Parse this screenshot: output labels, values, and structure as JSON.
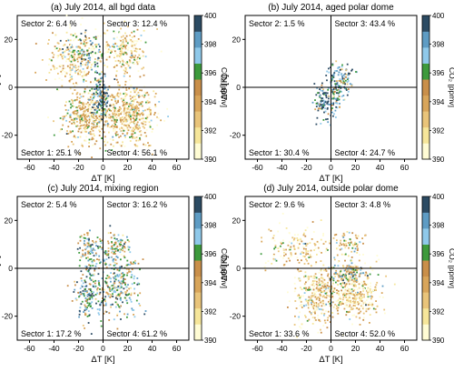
{
  "colorbar": {
    "label": "CO₂ [ppmv]",
    "ticks": [
      "390",
      "392",
      "394",
      "396",
      "398",
      "400"
    ],
    "colors": [
      "#fffcd4",
      "#f6e69a",
      "#e9c47a",
      "#d8a55a",
      "#c98f4a",
      "#3d9a3c",
      "#8fc9ea",
      "#5e9cc4",
      "#2c4b63"
    ]
  },
  "chart_data": [
    {
      "type": "scatter",
      "title": "(a) July 2014, all bgd data",
      "xlabel": "ΔT [K]",
      "ylabel": "ΔΘ [K]",
      "xlim": [
        -70,
        70
      ],
      "ylim": [
        -30,
        30
      ],
      "xticks": [
        "-60",
        "-40",
        "-20",
        "0",
        "20",
        "40",
        "60"
      ],
      "yticks": [
        "-20",
        "0",
        "20"
      ],
      "sectors": {
        "s1": "Sector 1: 25.1 %",
        "s2": "Sector 2: 6.4 %",
        "s3": "Sector 3: 12.4 %",
        "s4": "Sector 4: 56.1 %"
      },
      "clusters": [
        {
          "cx": -22,
          "cy": 12,
          "sx": 12,
          "sy": 6,
          "n": 260,
          "co2": 392.0
        },
        {
          "cx": -15,
          "cy": 14,
          "sx": 8,
          "sy": 4,
          "n": 80,
          "co2": 397.0
        },
        {
          "cx": 18,
          "cy": 14,
          "sx": 10,
          "sy": 5,
          "n": 220,
          "co2": 393.0
        },
        {
          "cx": -14,
          "cy": -12,
          "sx": 9,
          "sy": 6,
          "n": 360,
          "co2": 393.5
        },
        {
          "cx": 20,
          "cy": -12,
          "sx": 11,
          "sy": 6,
          "n": 520,
          "co2": 393.0
        },
        {
          "cx": -2,
          "cy": -4,
          "sx": 3,
          "sy": 5,
          "n": 140,
          "co2": 398.5
        }
      ]
    },
    {
      "type": "scatter",
      "title": "(b) July 2014, aged polar dome",
      "xlabel": "ΔT [K]",
      "ylabel": "ΔΘ [K]",
      "xlim": [
        -70,
        70
      ],
      "ylim": [
        -30,
        30
      ],
      "xticks": [
        "-60",
        "-40",
        "-20",
        "0",
        "20",
        "40",
        "60"
      ],
      "yticks": [
        "-20",
        "0",
        "20"
      ],
      "sectors": {
        "s1": "Sector 1: 30.4 %",
        "s2": "Sector 2: 1.5 %",
        "s3": "Sector 3: 43.4 %",
        "s4": "Sector 4: 24.7 %"
      },
      "clusters": [
        {
          "cx": 8,
          "cy": 4,
          "sx": 5,
          "sy": 4,
          "n": 110,
          "co2": 397.5
        },
        {
          "cx": -6,
          "cy": -6,
          "sx": 4,
          "sy": 4,
          "n": 100,
          "co2": 398.5
        },
        {
          "cx": 4,
          "cy": -5,
          "sx": 3,
          "sy": 3,
          "n": 50,
          "co2": 397.0
        }
      ]
    },
    {
      "type": "scatter",
      "title": "(c) July 2014, mixing region",
      "xlabel": "ΔT [K]",
      "ylabel": "ΔΘ [K]",
      "xlim": [
        -70,
        70
      ],
      "ylim": [
        -30,
        30
      ],
      "xticks": [
        "-60",
        "-40",
        "-20",
        "0",
        "20",
        "40",
        "60"
      ],
      "yticks": [
        "-20",
        "0",
        "20"
      ],
      "sectors": {
        "s1": "Sector 1: 17.2 %",
        "s2": "Sector 2: 5.4 %",
        "s3": "Sector 3: 16.2 %",
        "s4": "Sector 4: 61.2 %"
      },
      "clusters": [
        {
          "cx": -12,
          "cy": 8,
          "sx": 5,
          "sy": 4,
          "n": 80,
          "co2": 396.5
        },
        {
          "cx": 10,
          "cy": 8,
          "sx": 7,
          "sy": 4,
          "n": 110,
          "co2": 396.0
        },
        {
          "cx": -12,
          "cy": -10,
          "sx": 5,
          "sy": 6,
          "n": 160,
          "co2": 397.5
        },
        {
          "cx": 12,
          "cy": -8,
          "sx": 9,
          "sy": 6,
          "n": 260,
          "co2": 396.0
        }
      ]
    },
    {
      "type": "scatter",
      "title": "(d) July 2014, outside polar dome",
      "xlabel": "ΔT [K]",
      "ylabel": "ΔΘ [K]",
      "xlim": [
        -70,
        70
      ],
      "ylim": [
        -30,
        30
      ],
      "xticks": [
        "-60",
        "-40",
        "-20",
        "0",
        "20",
        "40",
        "60"
      ],
      "yticks": [
        "-20",
        "0",
        "20"
      ],
      "sectors": {
        "s1": "Sector 1: 33.6 %",
        "s2": "Sector 2: 9.6 %",
        "s3": "Sector 3: 4.8 %",
        "s4": "Sector 4: 52.0 %"
      },
      "clusters": [
        {
          "cx": -28,
          "cy": 8,
          "sx": 14,
          "sy": 5,
          "n": 160,
          "co2": 392.5
        },
        {
          "cx": 14,
          "cy": 10,
          "sx": 8,
          "sy": 3,
          "n": 70,
          "co2": 394.0
        },
        {
          "cx": -12,
          "cy": -12,
          "sx": 8,
          "sy": 6,
          "n": 280,
          "co2": 393.0
        },
        {
          "cx": 18,
          "cy": -10,
          "sx": 11,
          "sy": 6,
          "n": 420,
          "co2": 392.5
        },
        {
          "cx": 14,
          "cy": -2,
          "sx": 8,
          "sy": 2,
          "n": 80,
          "co2": 396.0
        }
      ]
    }
  ]
}
